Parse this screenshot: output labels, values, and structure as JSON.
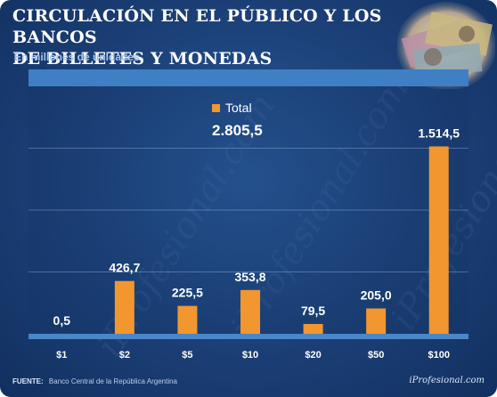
{
  "header": {
    "title_line1": "CIRCULACIÓN EN EL PÚBLICO Y LOS BANCOS",
    "title_line2": "DE BILLETES Y MONEDAS",
    "subtitle": "En millones de unidades"
  },
  "footer": {
    "source_label": "FUENTE:",
    "source_text": "Banco Central de la República Argentina",
    "brand": "iProfesional.com"
  },
  "watermark_text": "iProfesional.com",
  "colors": {
    "bar": "#f2962f",
    "label": "#ffffff",
    "plot_band": "#3f7fc4"
  },
  "chart_data": {
    "type": "bar",
    "categories": [
      "$1",
      "$2",
      "$5",
      "$10",
      "$20",
      "$50",
      "$100"
    ],
    "values": [
      0.5,
      426.7,
      225.5,
      353.8,
      79.5,
      205.0,
      1514.5
    ],
    "value_labels": [
      "0,5",
      "426,7",
      "225,5",
      "353,8",
      "79,5",
      "205,0",
      "1.514,5"
    ],
    "legend": {
      "name": "Total",
      "total_label": "2.805,5",
      "placement": "top-center"
    },
    "title": "CIRCULACIÓN EN EL PÚBLICO Y LOS BANCOS DE BILLETES Y MONEDAS",
    "ylabel": "",
    "ylim": [
      0,
      2000
    ],
    "grid": true
  }
}
